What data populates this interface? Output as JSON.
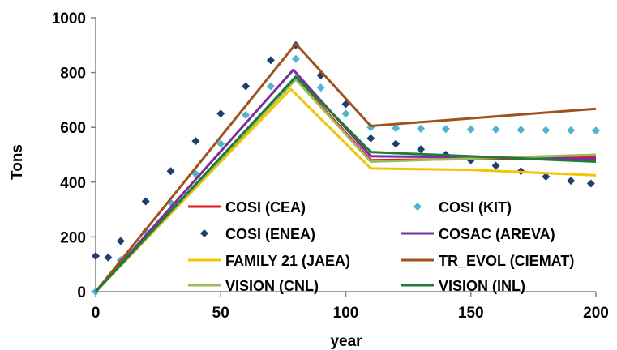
{
  "chart_data": {
    "type": "line",
    "title": "",
    "xlabel": "year",
    "ylabel": "Tons",
    "xlim": [
      0,
      200
    ],
    "ylim": [
      0,
      1000
    ],
    "xticks": [
      0,
      50,
      100,
      150,
      200
    ],
    "yticks": [
      0,
      200,
      400,
      600,
      800,
      1000
    ],
    "grid": false,
    "legend_position": "bottom-center",
    "series": [
      {
        "name": "COSI (CEA)",
        "style": "line",
        "color": "#e31a1c",
        "x": [
          0,
          80,
          110,
          200
        ],
        "y": [
          0,
          780,
          480,
          490
        ]
      },
      {
        "name": "COSI (KIT)",
        "style": "markers",
        "marker": "diamond",
        "color": "#4fb3d1",
        "x": [
          0,
          10,
          20,
          30,
          40,
          50,
          60,
          70,
          80,
          90,
          100,
          110,
          120,
          130,
          140,
          150,
          160,
          170,
          180,
          190,
          200
        ],
        "y": [
          0,
          115,
          220,
          325,
          430,
          540,
          645,
          750,
          850,
          745,
          650,
          600,
          597,
          595,
          594,
          593,
          592,
          591,
          590,
          589,
          588
        ]
      },
      {
        "name": "COSI (ENEA)",
        "style": "markers",
        "marker": "diamond",
        "color": "#1f3f73",
        "x": [
          0,
          5,
          10,
          20,
          30,
          40,
          50,
          60,
          70,
          80,
          90,
          100,
          110,
          120,
          130,
          140,
          150,
          160,
          170,
          180,
          190,
          198
        ],
        "y": [
          130,
          125,
          185,
          330,
          440,
          550,
          650,
          750,
          845,
          900,
          790,
          685,
          560,
          540,
          520,
          500,
          480,
          460,
          440,
          420,
          405,
          395
        ]
      },
      {
        "name": "COSAC (AREVA)",
        "style": "line",
        "color": "#7b2f9e",
        "x": [
          0,
          79,
          110,
          200
        ],
        "y": [
          0,
          810,
          495,
          485
        ]
      },
      {
        "name": "FAMILY 21 (JAEA)",
        "style": "line",
        "color": "#f5c400",
        "x": [
          0,
          78,
          110,
          150,
          200
        ],
        "y": [
          0,
          740,
          450,
          445,
          425
        ]
      },
      {
        "name": "TR_EVOL (CIEMAT)",
        "style": "line",
        "color": "#a0521e",
        "x": [
          0,
          80,
          110,
          200
        ],
        "y": [
          0,
          905,
          605,
          668
        ]
      },
      {
        "name": "VISION (CNL)",
        "style": "line",
        "color": "#9bbb59",
        "x": [
          0,
          80,
          110,
          200
        ],
        "y": [
          0,
          775,
          475,
          500
        ]
      },
      {
        "name": "VISION (INL)",
        "style": "line",
        "color": "#1e7b3a",
        "x": [
          0,
          80,
          110,
          200
        ],
        "y": [
          0,
          785,
          510,
          475
        ]
      }
    ]
  }
}
